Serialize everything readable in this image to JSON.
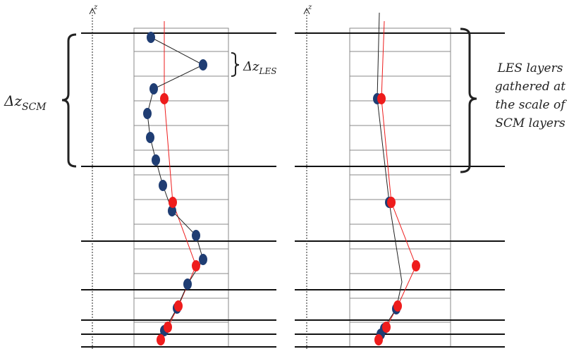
{
  "colors": {
    "les_marker": "#1f3d73",
    "scm_marker": "#ee1c1c",
    "les_line": "#222222",
    "scm_line": "#ee1c1c",
    "grid": "#888888",
    "heavy": "#111111"
  },
  "labels": {
    "axis_z_left": "z",
    "axis_z_right": "z",
    "dz_les_main": "Δz",
    "dz_les_sub": "LES",
    "dz_scm_main": "Δz",
    "dz_scm_sub": "SCM",
    "annotation_line1": "LES layers",
    "annotation_line2": "gathered at",
    "annotation_line3": "the scale of",
    "annotation_line4": "SCM layers"
  }
}
